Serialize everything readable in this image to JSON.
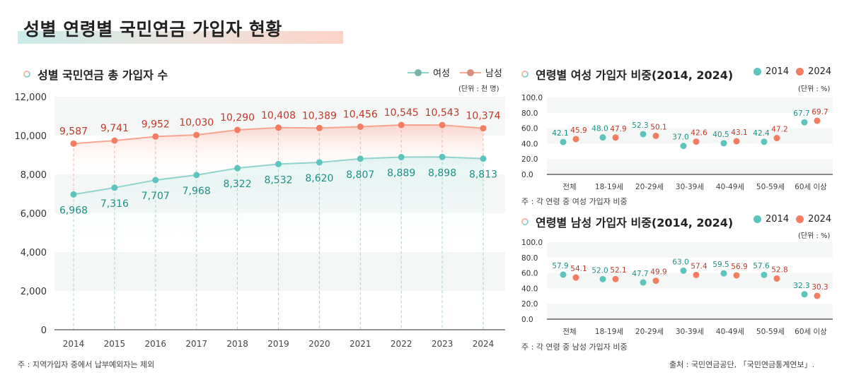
{
  "page": {
    "title": "성별 연령별 국민연금 가입자 현황",
    "source": "출처 : 국민연금공단, 「국민연금통계연보」."
  },
  "colors": {
    "female": "#5cc3bd",
    "male": "#f47c60",
    "female_label": "#1f8f85",
    "male_label": "#c0392b",
    "y2014": "#5cc3bd",
    "y2024": "#f47c60"
  },
  "chart_data": [
    {
      "type": "line",
      "title": "성별 국민연금 총 가입자 수",
      "unit": "(단위 : 천 명)",
      "note": "주 : 지역가입자 중에서 납부예외자는 제외",
      "x": [
        "2014",
        "2015",
        "2016",
        "2017",
        "2018",
        "2019",
        "2020",
        "2021",
        "2022",
        "2023",
        "2024"
      ],
      "series": [
        {
          "name": "여성",
          "values": [
            6968,
            7316,
            7707,
            7968,
            8322,
            8532,
            8620,
            8807,
            8889,
            8898,
            8813
          ],
          "labels": [
            "6,968",
            "7,316",
            "7,707",
            "7,968",
            "8,322",
            "8,532",
            "8,620",
            "8,807",
            "8,889",
            "8,898",
            "8,813"
          ]
        },
        {
          "name": "남성",
          "values": [
            9587,
            9741,
            9952,
            10030,
            10290,
            10408,
            10389,
            10456,
            10545,
            10543,
            10374
          ],
          "labels": [
            "9,587",
            "9,741",
            "9,952",
            "10,030",
            "10,290",
            "10,408",
            "10,389",
            "10,456",
            "10,545",
            "10,543",
            "10,374"
          ]
        }
      ],
      "ylim": [
        0,
        12000
      ],
      "yticks": [
        0,
        2000,
        4000,
        6000,
        8000,
        10000,
        12000
      ],
      "ytick_labels": [
        "0",
        "2,000",
        "4,000",
        "6,000",
        "8,000",
        "10,000",
        "12,000"
      ],
      "legend": "top-right",
      "grid": "alternating-bands"
    },
    {
      "type": "lollipop",
      "title": "연령별 여성 가입자 비중(2014, 2024)",
      "unit": "(단위 : %)",
      "note": "주 : 각 연령 중 여성 가입자 비중",
      "categories": [
        "전체",
        "18-19세",
        "20-29세",
        "30-39세",
        "40-49세",
        "50-59세",
        "60세 이상"
      ],
      "series": [
        {
          "name": "2014",
          "values": [
            42.1,
            48.0,
            52.3,
            37.0,
            40.5,
            42.4,
            67.7
          ]
        },
        {
          "name": "2024",
          "values": [
            45.9,
            47.9,
            50.1,
            42.6,
            43.1,
            47.2,
            69.7
          ]
        }
      ],
      "ylim": [
        0,
        100
      ],
      "yticks": [
        "0.0",
        "20.0",
        "40.0",
        "60.0",
        "80.0",
        "100.0"
      ],
      "legend": "top-right"
    },
    {
      "type": "lollipop",
      "title": "연령별 남성 가입자 비중(2014, 2024)",
      "unit": "(단위 : %)",
      "note": "주 : 각 연령 중 남성 가입자 비중",
      "categories": [
        "전체",
        "18-19세",
        "20-29세",
        "30-39세",
        "40-49세",
        "50-59세",
        "60세 이상"
      ],
      "series": [
        {
          "name": "2014",
          "values": [
            57.9,
            52.0,
            47.7,
            63.0,
            59.5,
            57.6,
            32.3
          ]
        },
        {
          "name": "2024",
          "values": [
            54.1,
            52.1,
            49.9,
            57.4,
            56.9,
            52.8,
            30.3
          ]
        }
      ],
      "ylim": [
        0,
        100
      ],
      "yticks": [
        "0.0",
        "20.0",
        "40.0",
        "60.0",
        "80.0",
        "100.0"
      ],
      "legend": "top-right"
    }
  ]
}
